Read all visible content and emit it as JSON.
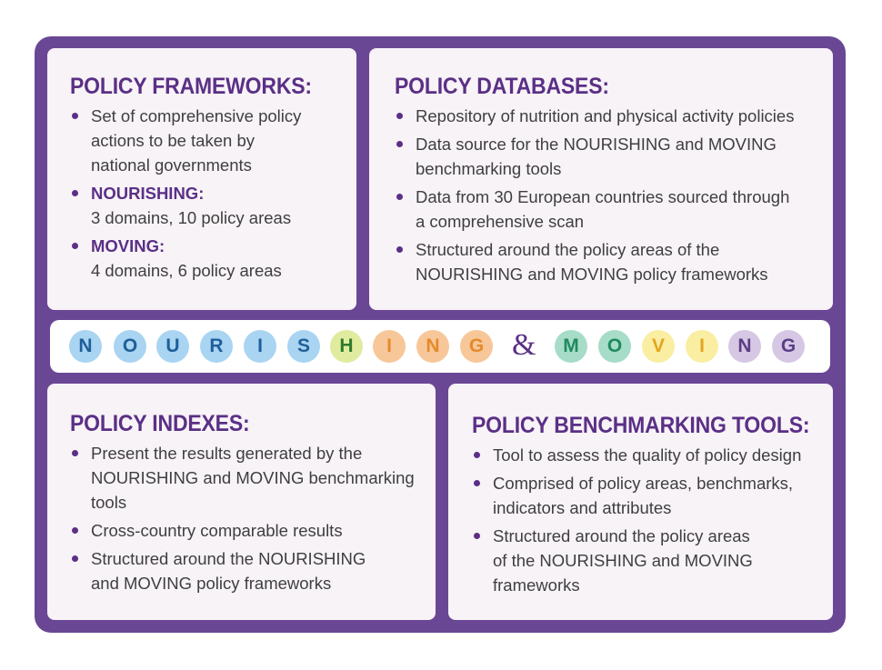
{
  "frameworks": {
    "title": "POLICY FRAMEWORKS:",
    "item1": [
      "Set of comprehensive policy",
      "actions to be taken by",
      "national governments"
    ],
    "nourishing_label": "NOURISHING:",
    "nourishing_text": "3 domains, 10 policy areas",
    "moving_label": "MOVING:",
    "moving_text": "4 domains, 6 policy areas"
  },
  "databases": {
    "title": "POLICY DATABASES:",
    "items": [
      [
        "Repository of nutrition and physical activity policies"
      ],
      [
        "Data source for the NOURISHING and MOVING",
        "benchmarking tools"
      ],
      [
        "Data from 30 European countries sourced through",
        "a comprehensive scan"
      ],
      [
        "Structured around the policy areas of the",
        "NOURISHING and MOVING policy frameworks"
      ]
    ]
  },
  "indexes": {
    "title": "POLICY INDEXES:",
    "items": [
      [
        "Present the results generated by the",
        "NOURISHING and MOVING benchmarking",
        "tools"
      ],
      [
        "Cross-country comparable results"
      ],
      [
        "Structured around the NOURISHING",
        "and MOVING policy frameworks"
      ]
    ]
  },
  "benchmarking": {
    "title": "POLICY BENCHMARKING TOOLS:",
    "items": [
      [
        "Tool to assess the quality of policy design"
      ],
      [
        "Comprised of policy areas, benchmarks,",
        "indicators and attributes"
      ],
      [
        "Structured around the policy areas",
        "of the NOURISHING and MOVING",
        "frameworks"
      ]
    ]
  },
  "strip": {
    "ampersand": "&",
    "letters": [
      {
        "ch": "N",
        "bg": "#a9d4f2",
        "fg": "#1f5f99"
      },
      {
        "ch": "O",
        "bg": "#a9d4f2",
        "fg": "#1f5f99"
      },
      {
        "ch": "U",
        "bg": "#a9d4f2",
        "fg": "#1f5f99"
      },
      {
        "ch": "R",
        "bg": "#a9d4f2",
        "fg": "#1f5f99"
      },
      {
        "ch": "I",
        "bg": "#a9d4f2",
        "fg": "#1f5f99"
      },
      {
        "ch": "S",
        "bg": "#a9d4f2",
        "fg": "#1f5f99"
      },
      {
        "ch": "H",
        "bg": "#e1eb9f",
        "fg": "#2f7a2e"
      },
      {
        "ch": "I",
        "bg": "#f7c79a",
        "fg": "#e58a2a"
      },
      {
        "ch": "N",
        "bg": "#f7c79a",
        "fg": "#e58a2a"
      },
      {
        "ch": "G",
        "bg": "#f7c79a",
        "fg": "#e58a2a"
      },
      {
        "ch": "M",
        "bg": "#a6dcc8",
        "fg": "#1f8a5e"
      },
      {
        "ch": "O",
        "bg": "#a6dcc8",
        "fg": "#1f8a5e"
      },
      {
        "ch": "V",
        "bg": "#faeea2",
        "fg": "#e3a51f"
      },
      {
        "ch": "I",
        "bg": "#faeea2",
        "fg": "#e3a51f"
      },
      {
        "ch": "N",
        "bg": "#d6c8e4",
        "fg": "#5b3e86"
      },
      {
        "ch": "G",
        "bg": "#d6c8e4",
        "fg": "#5b3e86"
      }
    ]
  },
  "colors": {
    "frame": "#6a4795",
    "panel": "#f7f3f7",
    "accent": "#5b2f86",
    "text": "#3f3f3f"
  }
}
